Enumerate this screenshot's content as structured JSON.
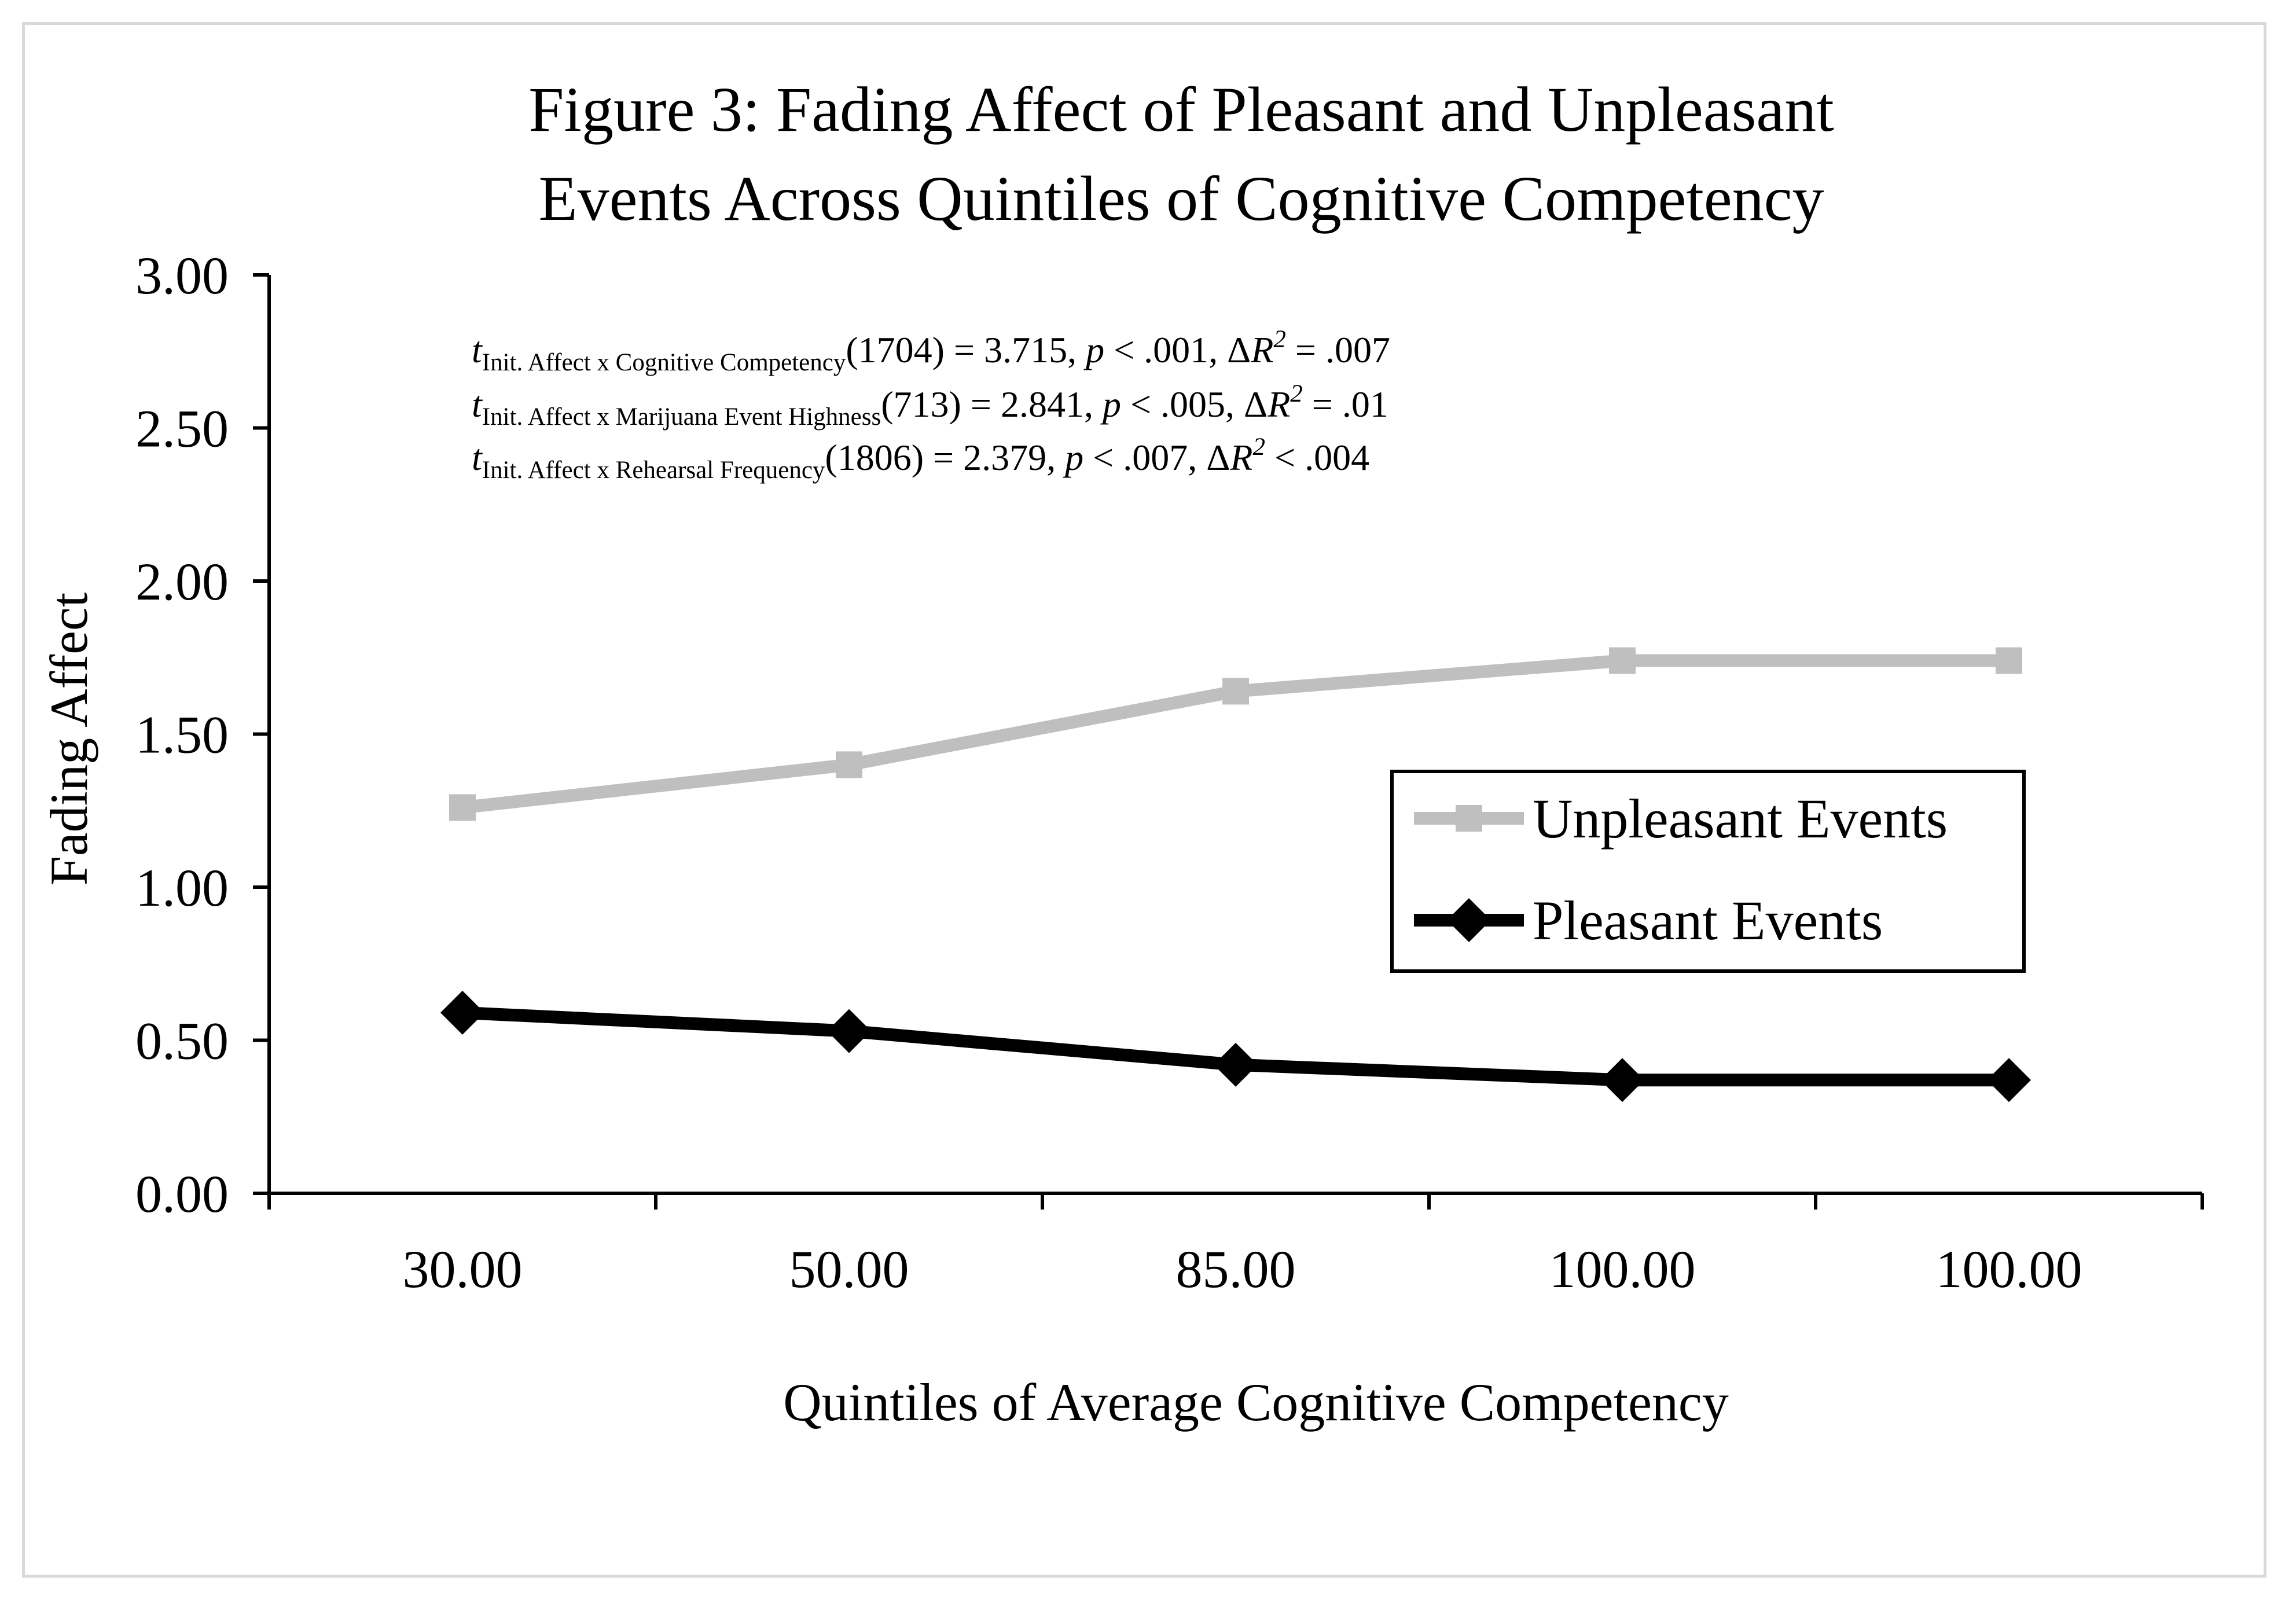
{
  "chart_data": {
    "type": "line",
    "title": "Figure 3: Fading Affect of Pleasant and Unpleasant Events Across Quintiles of Cognitive Competency",
    "title_lines": [
      "Figure 3: Fading Affect of Pleasant and Unpleasant",
      "Events Across Quintiles of Cognitive Competency"
    ],
    "xlabel": "Quintiles of Average Cognitive Competency",
    "ylabel": "Fading Affect",
    "categories": [
      "30.00",
      "50.00",
      "85.00",
      "100.00",
      "100.00"
    ],
    "ylim": [
      0,
      3
    ],
    "yticks": [
      "0.00",
      "0.50",
      "1.00",
      "1.50",
      "2.00",
      "2.50",
      "3.00"
    ],
    "grid": false,
    "legend_position": "right-center",
    "series": [
      {
        "name": "Unpleasant Events",
        "values": [
          1.26,
          1.4,
          1.64,
          1.74,
          1.74
        ],
        "color": "#bfbfbf",
        "marker": "square"
      },
      {
        "name": "Pleasant Events",
        "values": [
          0.59,
          0.53,
          0.42,
          0.37,
          0.37
        ],
        "color": "#000000",
        "marker": "diamond"
      }
    ],
    "annotations": [
      {
        "t": "t",
        "sub": "Init. Affect x Cognitive Competency",
        "rest": "(1704) = 3.715, ",
        "p": "p",
        "p_rest": " < .001, Δ",
        "R": "R",
        "sup": "2",
        "end": " = .007"
      },
      {
        "t": "t",
        "sub": "Init. Affect x Marijuana Event Highness",
        "rest": "(713) = 2.841, ",
        "p": "p",
        "p_rest": " < .005, Δ",
        "R": "R",
        "sup": "2",
        "end": " = .01"
      },
      {
        "t": "t",
        "sub": "Init. Affect x Rehearsal Frequency",
        "rest": "(1806) = 2.379, ",
        "p": "p",
        "p_rest": " < .007, Δ",
        "R": "R",
        "sup": "2",
        "end": " < .004"
      }
    ]
  }
}
